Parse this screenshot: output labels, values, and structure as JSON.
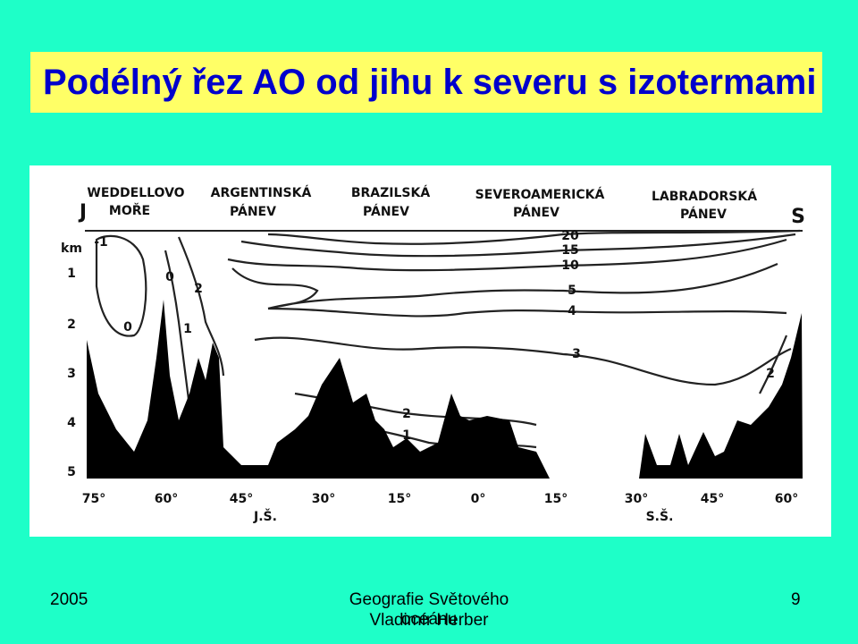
{
  "header": {
    "title": "Podélný řez AO od jihu k severu s izotermami"
  },
  "figure": {
    "basins": [
      [
        "WEDDELLOVO",
        "MOŘE"
      ],
      [
        "ARGENTINSKÁ",
        "PÁNEV"
      ],
      [
        "BRAZILSKÁ",
        "PÁNEV"
      ],
      [
        "SEVEROAMERICKÁ",
        "PÁNEV"
      ],
      [
        "LABRADORSKÁ",
        "PÁNEV"
      ]
    ],
    "start_label": "J",
    "end_label": "S",
    "depth_unit": "km",
    "depths": [
      "1",
      "2",
      "3",
      "4",
      "5"
    ],
    "latitudes": [
      "75°",
      "60°",
      "45°",
      "30°",
      "15°",
      "0°",
      "15°",
      "30°",
      "45°",
      "60°"
    ],
    "hemispheres": [
      "J.Š.",
      "S.Š."
    ],
    "isotherms": [
      "-1",
      "0",
      "0",
      "2",
      "1",
      "20",
      "15",
      "10",
      "5",
      "4",
      "3",
      "2",
      "1",
      "2"
    ]
  },
  "footer": {
    "year": "2005",
    "course": "Geografie Světového oceánu",
    "author": "Vladimír Herber",
    "page": "9"
  }
}
